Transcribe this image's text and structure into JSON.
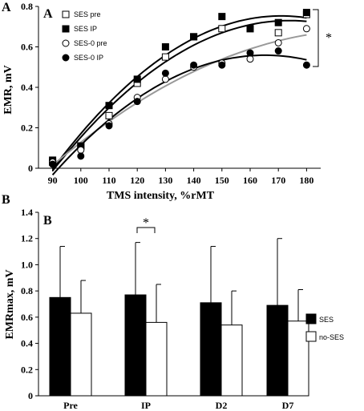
{
  "figure_labels": {
    "a": "A",
    "b": "B"
  },
  "chart_data": [
    {
      "panel": "A",
      "type": "scatter",
      "xlabel": "TMS intensity, %rMT",
      "ylabel": "EMR, mV",
      "x": [
        90,
        100,
        110,
        120,
        130,
        140,
        150,
        160,
        170,
        180
      ],
      "xticks": [
        "90",
        "100",
        "110",
        "120",
        "130",
        "140",
        "150",
        "160",
        "170",
        "180"
      ],
      "xlim": [
        85,
        185
      ],
      "ylim": [
        0,
        0.8
      ],
      "yticks": [
        "0",
        "0.2",
        "0.4",
        "0.6",
        "0.8"
      ],
      "grid": false,
      "legend_position": "top-left",
      "series": [
        {
          "name": "SES pre",
          "marker": "square-open",
          "trend": "#000000",
          "values": [
            0.03,
            0.11,
            0.26,
            0.42,
            0.55,
            0.65,
            0.69,
            0.69,
            0.67,
            0.76
          ]
        },
        {
          "name": "SES IP",
          "marker": "square-filled",
          "trend": "#000000",
          "values": [
            0.04,
            0.11,
            0.31,
            0.44,
            0.6,
            0.65,
            0.75,
            0.69,
            0.72,
            0.77
          ]
        },
        {
          "name": "SES-0 pre",
          "marker": "circle-open",
          "trend": "#999999",
          "values": [
            0.03,
            0.09,
            0.22,
            0.35,
            0.44,
            0.5,
            0.52,
            0.54,
            0.62,
            0.69
          ]
        },
        {
          "name": "SES-0 IP",
          "marker": "circle-filled",
          "trend": "#000000",
          "values": [
            0.02,
            0.06,
            0.21,
            0.33,
            0.47,
            0.51,
            0.51,
            0.57,
            0.58,
            0.51
          ]
        }
      ],
      "annotations": [
        {
          "text": "*"
        }
      ]
    },
    {
      "panel": "B",
      "type": "bar",
      "xlabel": "",
      "ylabel": "EMRmax, mV",
      "categories": [
        "Pre",
        "IP",
        "D2",
        "D7"
      ],
      "ylim": [
        0,
        1.4
      ],
      "yticks": [
        "0",
        "0.2",
        "0.4",
        "0.6",
        "0.8",
        "1.0",
        "1.2",
        "1.4"
      ],
      "grid": false,
      "legend_position": "right",
      "series": [
        {
          "name": "SES",
          "color": "#000000",
          "values": [
            0.75,
            0.77,
            0.71,
            0.69
          ],
          "errors": [
            0.39,
            0.4,
            0.43,
            0.51
          ]
        },
        {
          "name": "no-SES",
          "color": "#ffffff",
          "values": [
            0.63,
            0.56,
            0.54,
            0.57
          ],
          "errors": [
            0.25,
            0.29,
            0.26,
            0.24
          ]
        }
      ],
      "annotations": [
        {
          "text": "*"
        }
      ]
    }
  ]
}
